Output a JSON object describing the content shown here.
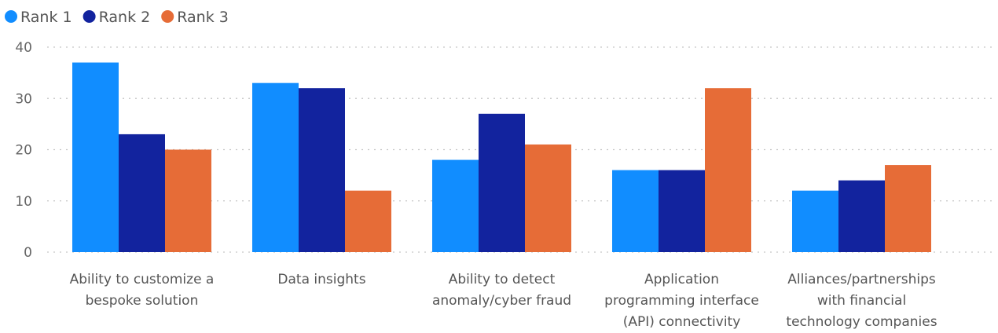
{
  "chart_data": {
    "type": "bar",
    "categories": [
      [
        "Ability to customize a",
        "bespoke solution"
      ],
      [
        "Data insights"
      ],
      [
        "Ability to detect",
        "anomaly/cyber fraud"
      ],
      [
        "Application",
        "programming interface",
        "(API) connectivity"
      ],
      [
        "Alliances/partnerships",
        "with financial",
        "technology companies"
      ]
    ],
    "series": [
      {
        "name": "Rank 1",
        "color": "#118DFF",
        "values": [
          37,
          33,
          18,
          16,
          12
        ]
      },
      {
        "name": "Rank 2",
        "color": "#12239E",
        "values": [
          23,
          32,
          27,
          16,
          14
        ]
      },
      {
        "name": "Rank 3",
        "color": "#E66C37",
        "values": [
          20,
          12,
          21,
          32,
          17
        ]
      }
    ],
    "ylim": [
      0,
      40
    ],
    "yticks": [
      0,
      10,
      20,
      30,
      40
    ],
    "grid": true,
    "legend_position": "top-left",
    "title": "",
    "xlabel": "",
    "ylabel": ""
  }
}
